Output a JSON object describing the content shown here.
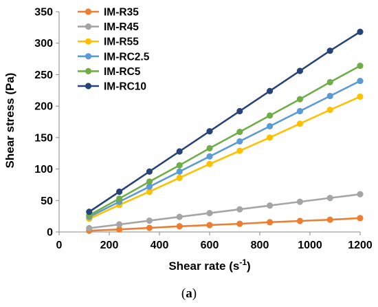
{
  "chart_data": {
    "type": "line",
    "xlabel": "Shear rate (s",
    "xlabel_sup": "-1",
    "xlabel_end": ")",
    "ylabel": "Shear stress (Pa)",
    "xlim": [
      0,
      1200
    ],
    "ylim": [
      0,
      350
    ],
    "xticks": [
      0,
      200,
      400,
      600,
      800,
      1000,
      1200
    ],
    "yticks": [
      0,
      50,
      100,
      150,
      200,
      250,
      300,
      350
    ],
    "grid": false,
    "legend_position": "top-left",
    "x": [
      120,
      240,
      360,
      480,
      600,
      720,
      840,
      960,
      1080,
      1200
    ],
    "series": [
      {
        "name": "IM-R35",
        "color": "#ED7D31",
        "values": [
          2,
          4,
          6.5,
          9,
          11,
          13,
          15.5,
          17.5,
          19.5,
          22
        ]
      },
      {
        "name": "IM-R45",
        "color": "#A5A5A5",
        "values": [
          6,
          12,
          18,
          24,
          30,
          36,
          42,
          48,
          54,
          60
        ]
      },
      {
        "name": "IM-R55",
        "color": "#FFC000",
        "values": [
          21,
          43,
          64,
          86,
          108,
          129,
          150,
          172,
          194,
          215
        ]
      },
      {
        "name": "IM-RC2.5",
        "color": "#5B9BD5",
        "values": [
          24,
          48,
          72,
          96,
          120,
          144,
          168,
          192,
          216,
          240
        ]
      },
      {
        "name": "IM-RC5",
        "color": "#70AD47",
        "values": [
          26.5,
          53,
          80,
          106,
          133,
          159,
          185,
          211,
          238,
          264
        ]
      },
      {
        "name": "IM-RC10",
        "color": "#264478",
        "values": [
          32,
          64,
          96,
          128,
          160,
          192,
          224,
          256,
          288,
          318
        ]
      }
    ]
  },
  "caption": {
    "open": "(",
    "letter": "a",
    "close": ")"
  }
}
